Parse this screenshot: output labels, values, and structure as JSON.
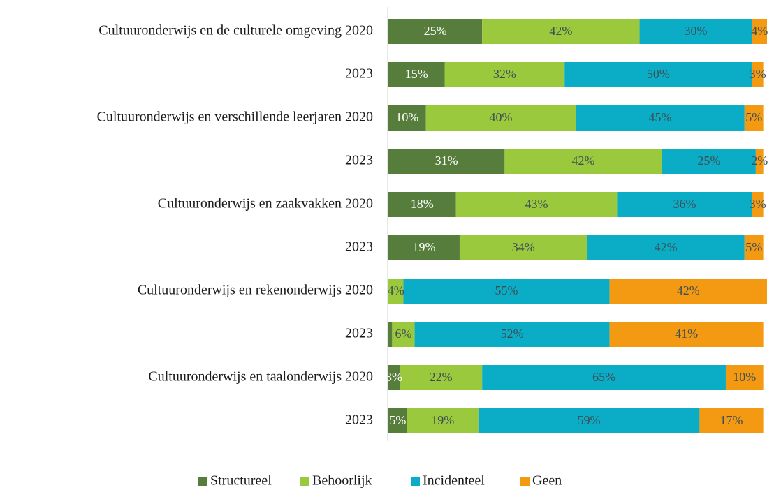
{
  "chart_data": {
    "type": "stacked_barh",
    "categories": [
      "Cultuuronderwijs en de culturele omgeving 2020",
      "2023",
      "Cultuuronderwijs en verschillende leerjaren 2020",
      "2023",
      "Cultuuronderwijs en zaakvakken 2020",
      "2023",
      "Cultuuronderwijs en rekenonderwijs 2020",
      "2023",
      "Cultuuronderwijs en taalonderwijs 2020",
      "2023"
    ],
    "series": [
      {
        "name": "Structureel",
        "color": "#567d3b",
        "values": [
          25,
          15,
          10,
          31,
          18,
          19,
          0,
          1,
          3,
          5
        ],
        "value_labels": [
          "25%",
          "15%",
          "10%",
          "31%",
          "18%",
          "19%",
          null,
          null,
          "3%",
          "5%"
        ]
      },
      {
        "name": "Behoorlijk",
        "color": "#9bc93e",
        "values": [
          42,
          32,
          40,
          42,
          43,
          34,
          4,
          6,
          22,
          19
        ],
        "value_labels": [
          "42%",
          "32%",
          "40%",
          "42%",
          "43%",
          "34%",
          "4%",
          "6%",
          "22%",
          "19%"
        ]
      },
      {
        "name": "Incidenteel",
        "color": "#0badc6",
        "values": [
          30,
          50,
          45,
          25,
          36,
          42,
          55,
          52,
          65,
          59
        ],
        "value_labels": [
          "30%",
          "50%",
          "45%",
          "25%",
          "36%",
          "42%",
          "55%",
          "52%",
          "65%",
          "59%"
        ]
      },
      {
        "name": "Geen",
        "color": "#f39a12",
        "values": [
          4,
          3,
          5,
          2,
          3,
          5,
          42,
          41,
          10,
          17
        ],
        "value_labels": [
          "4%",
          "3%",
          "5%",
          "2%",
          "3%",
          "5%",
          "42%",
          "41%",
          "10%",
          "17%"
        ]
      }
    ],
    "xlim": [
      0,
      101
    ],
    "legend": "bottom"
  }
}
